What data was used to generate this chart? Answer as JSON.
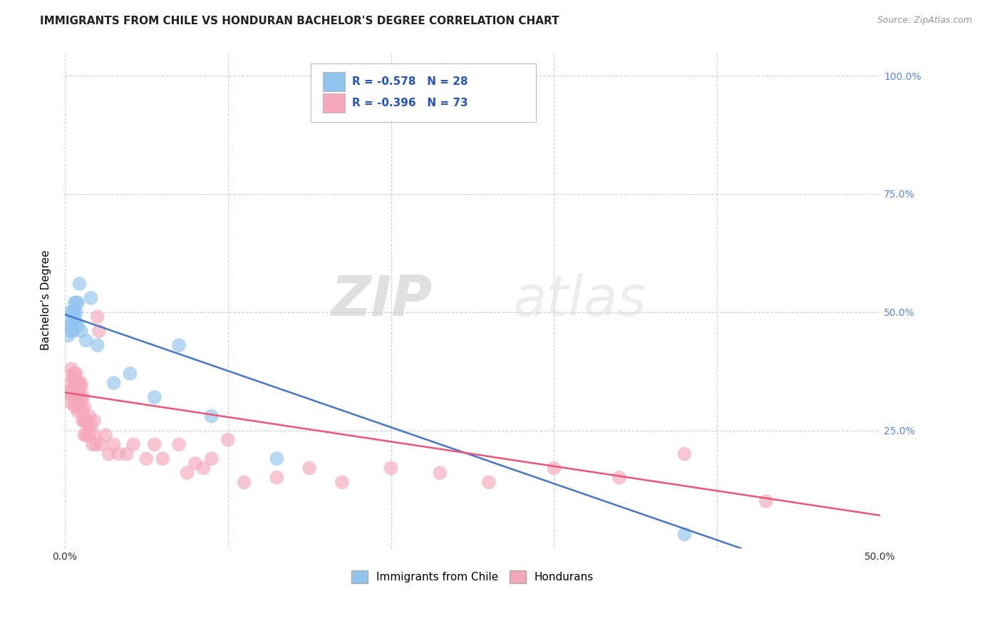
{
  "title": "IMMIGRANTS FROM CHILE VS HONDURAN BACHELOR'S DEGREE CORRELATION CHART",
  "source": "Source: ZipAtlas.com",
  "ylabel": "Bachelor's Degree",
  "xlim": [
    0.0,
    0.5
  ],
  "ylim": [
    0.0,
    1.05
  ],
  "background_color": "#ffffff",
  "grid_color": "#cccccc",
  "blue_color": "#90C4EE",
  "pink_color": "#F5A8BB",
  "blue_line_color": "#4477CC",
  "pink_line_color": "#EE5577",
  "watermark_zip": "ZIP",
  "watermark_atlas": "atlas",
  "legend_text1": "R = -0.578   N = 28",
  "legend_text2": "R = -0.396   N = 73",
  "legend_label1": "Immigrants from Chile",
  "legend_label2": "Hondurans",
  "blue_scatter_x": [
    0.002,
    0.003,
    0.003,
    0.004,
    0.004,
    0.005,
    0.005,
    0.005,
    0.006,
    0.006,
    0.006,
    0.007,
    0.007,
    0.007,
    0.008,
    0.008,
    0.009,
    0.01,
    0.013,
    0.016,
    0.02,
    0.03,
    0.04,
    0.055,
    0.07,
    0.09,
    0.13,
    0.38
  ],
  "blue_scatter_y": [
    0.45,
    0.47,
    0.5,
    0.48,
    0.46,
    0.5,
    0.48,
    0.46,
    0.5,
    0.52,
    0.48,
    0.52,
    0.48,
    0.5,
    0.47,
    0.52,
    0.56,
    0.46,
    0.44,
    0.53,
    0.43,
    0.35,
    0.37,
    0.32,
    0.43,
    0.28,
    0.19,
    0.03
  ],
  "pink_scatter_x": [
    0.002,
    0.003,
    0.003,
    0.004,
    0.004,
    0.005,
    0.005,
    0.005,
    0.005,
    0.006,
    0.006,
    0.006,
    0.006,
    0.007,
    0.007,
    0.007,
    0.007,
    0.008,
    0.008,
    0.008,
    0.008,
    0.009,
    0.009,
    0.009,
    0.01,
    0.01,
    0.01,
    0.01,
    0.011,
    0.011,
    0.011,
    0.012,
    0.012,
    0.012,
    0.013,
    0.013,
    0.014,
    0.015,
    0.015,
    0.016,
    0.017,
    0.018,
    0.018,
    0.019,
    0.02,
    0.021,
    0.022,
    0.025,
    0.027,
    0.03,
    0.033,
    0.038,
    0.042,
    0.05,
    0.055,
    0.06,
    0.07,
    0.075,
    0.08,
    0.085,
    0.09,
    0.1,
    0.11,
    0.13,
    0.15,
    0.17,
    0.2,
    0.23,
    0.26,
    0.3,
    0.34,
    0.38,
    0.43
  ],
  "pink_scatter_y": [
    0.33,
    0.31,
    0.35,
    0.38,
    0.33,
    0.36,
    0.32,
    0.34,
    0.37,
    0.34,
    0.36,
    0.3,
    0.37,
    0.35,
    0.31,
    0.37,
    0.32,
    0.34,
    0.32,
    0.29,
    0.35,
    0.33,
    0.3,
    0.35,
    0.34,
    0.32,
    0.3,
    0.35,
    0.29,
    0.32,
    0.27,
    0.27,
    0.3,
    0.24,
    0.27,
    0.24,
    0.26,
    0.28,
    0.24,
    0.26,
    0.22,
    0.24,
    0.27,
    0.22,
    0.49,
    0.46,
    0.22,
    0.24,
    0.2,
    0.22,
    0.2,
    0.2,
    0.22,
    0.19,
    0.22,
    0.19,
    0.22,
    0.16,
    0.18,
    0.17,
    0.19,
    0.23,
    0.14,
    0.15,
    0.17,
    0.14,
    0.17,
    0.16,
    0.14,
    0.17,
    0.15,
    0.2,
    0.1
  ],
  "blue_trend_x": [
    0.0,
    0.415
  ],
  "blue_trend_y": [
    0.495,
    0.0
  ],
  "pink_trend_x": [
    0.0,
    0.5
  ],
  "pink_trend_y": [
    0.33,
    0.07
  ]
}
